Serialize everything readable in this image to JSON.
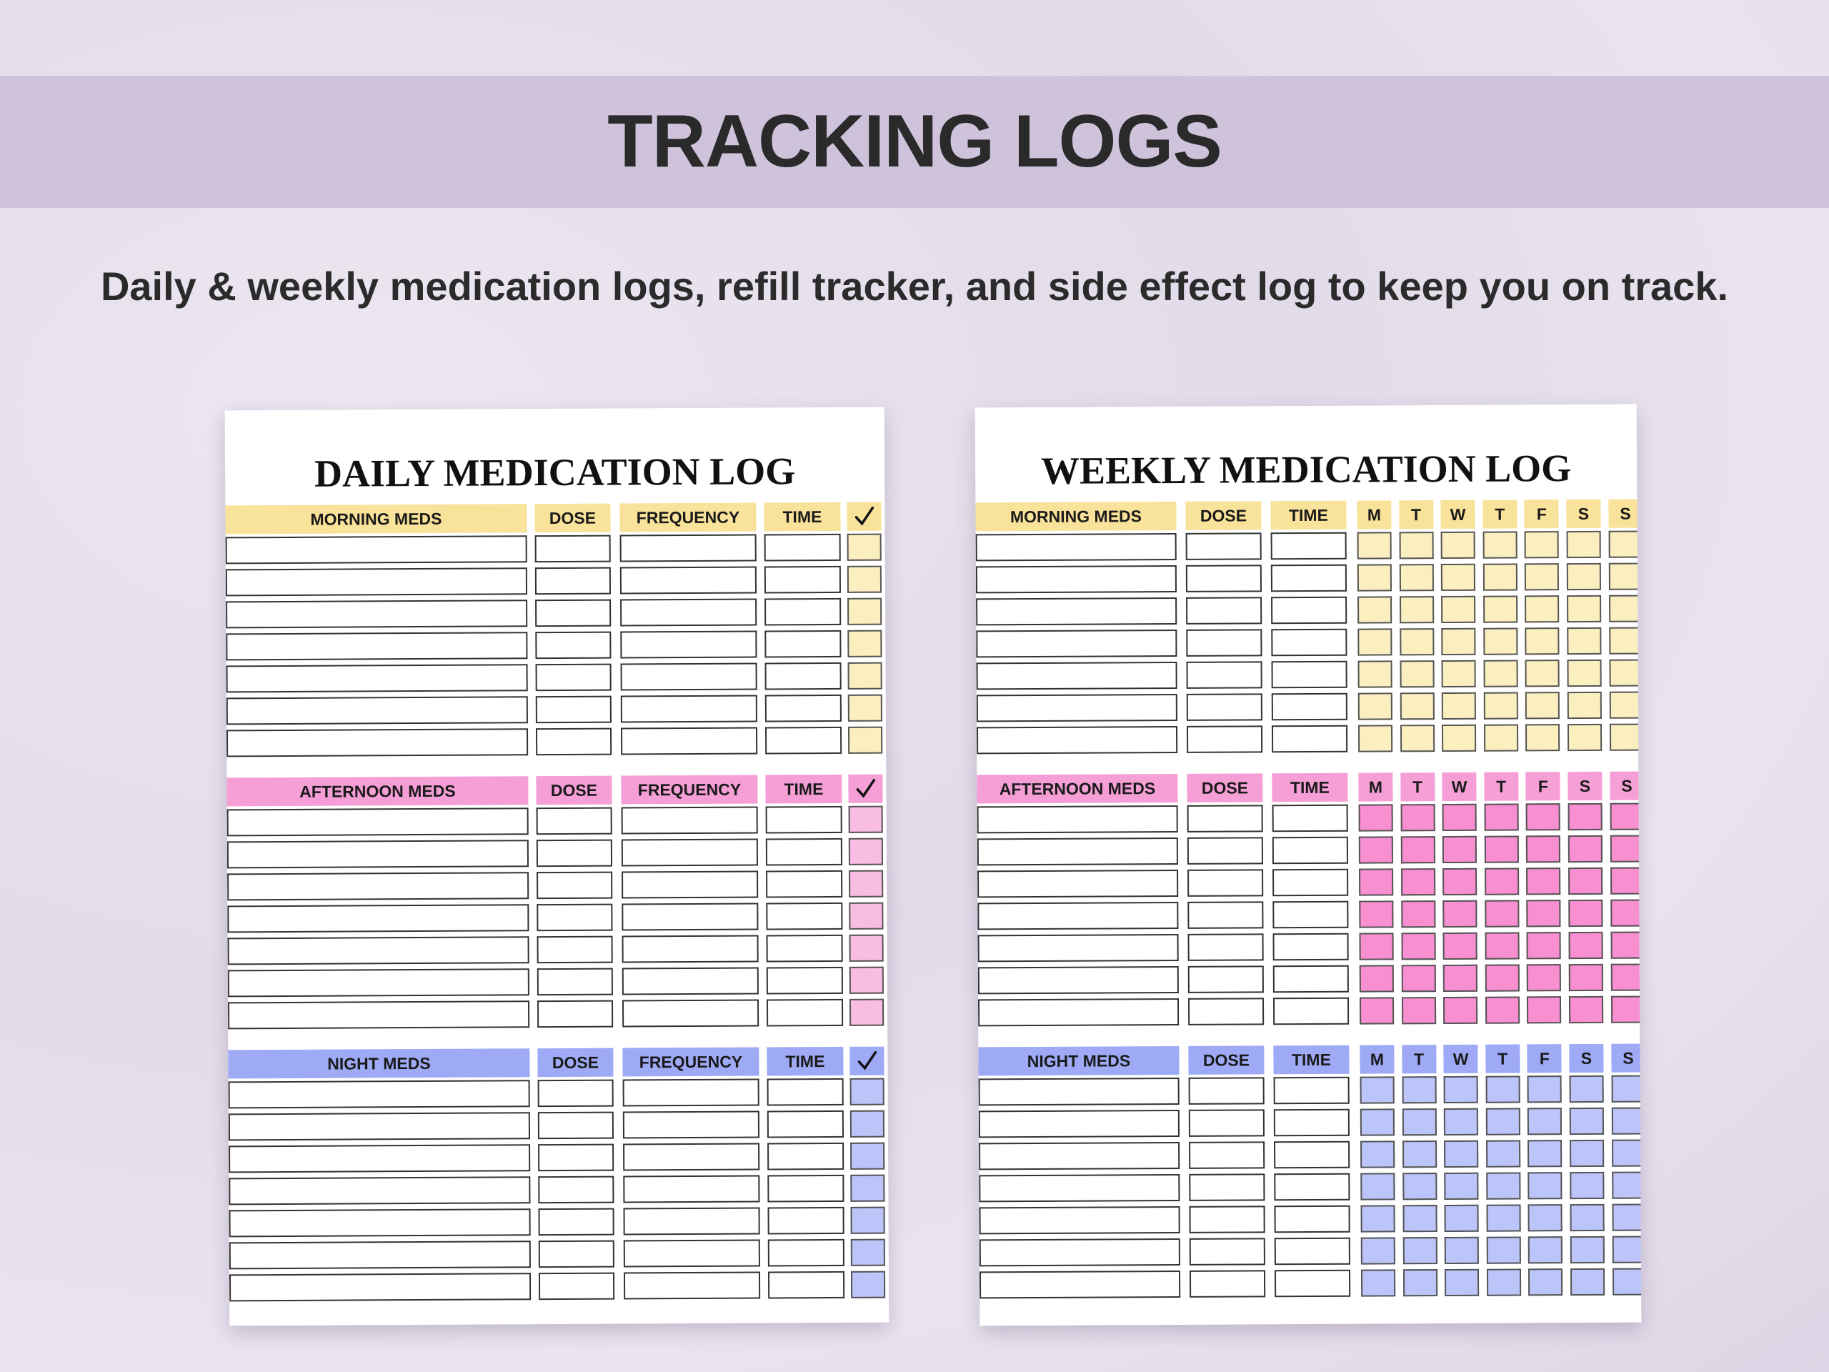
{
  "banner": {
    "title": "TRACKING LOGS"
  },
  "subtitle": "Daily & weekly medication logs, refill tracker, and side effect log to keep you on track.",
  "daily_log": {
    "title": "DAILY MEDICATION LOG",
    "sections": [
      {
        "headers": [
          "MORNING MEDS",
          "DOSE",
          "FREQUENCY",
          "TIME"
        ]
      },
      {
        "headers": [
          "AFTERNOON MEDS",
          "DOSE",
          "FREQUENCY",
          "TIME"
        ]
      },
      {
        "headers": [
          "NIGHT MEDS",
          "DOSE",
          "FREQUENCY",
          "TIME"
        ]
      }
    ]
  },
  "weekly_log": {
    "title": "WEEKLY MEDICATION LOG",
    "sections": [
      {
        "headers": [
          "MORNING MEDS",
          "DOSE",
          "TIME"
        ],
        "days": [
          "M",
          "T",
          "W",
          "T",
          "F",
          "S",
          "S"
        ]
      },
      {
        "headers": [
          "AFTERNOON MEDS",
          "DOSE",
          "TIME"
        ],
        "days": [
          "M",
          "T",
          "W",
          "T",
          "F",
          "S",
          "S"
        ]
      },
      {
        "headers": [
          "NIGHT MEDS",
          "DOSE",
          "TIME"
        ],
        "days": [
          "M",
          "T",
          "W",
          "T",
          "F",
          "S",
          "S"
        ]
      }
    ]
  }
}
